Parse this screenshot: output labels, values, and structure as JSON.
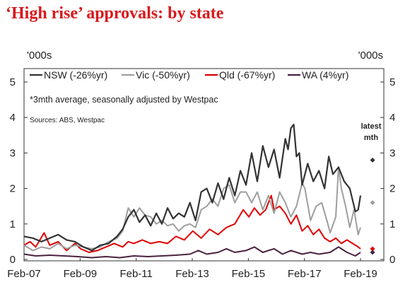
{
  "title": "‘High rise’ approvals: by state",
  "chart_data": {
    "type": "line",
    "unit_left": "'000s",
    "unit_right": "'000s",
    "ylim": [
      0,
      5
    ],
    "yticks": [
      0,
      1,
      2,
      3,
      4,
      5
    ],
    "xlim": [
      2007.083,
      2019.083
    ],
    "xticks": [
      {
        "label": "Feb-07",
        "value": 2007.083
      },
      {
        "label": "Feb-09",
        "value": 2009.083
      },
      {
        "label": "Feb-11",
        "value": 2011.083
      },
      {
        "label": "Feb-13",
        "value": 2013.083
      },
      {
        "label": "Feb-15",
        "value": 2015.083
      },
      {
        "label": "Feb-17",
        "value": 2017.083
      },
      {
        "label": "Feb-19",
        "value": 2019.083
      }
    ],
    "note": "*3mth average, seasonally adjusted by Westpac",
    "source": "Sources: ABS, Westpac",
    "latest_label_line1": "latest",
    "latest_label_line2": "mth",
    "legend_position": "top-left",
    "series": [
      {
        "name": "NSW (-26%yr)",
        "color": "#333333",
        "width": 2.2,
        "latest": 2.8,
        "points": [
          [
            2007.083,
            0.65
          ],
          [
            2007.4,
            0.6
          ],
          [
            2007.7,
            0.5
          ],
          [
            2008.0,
            0.6
          ],
          [
            2008.3,
            0.7
          ],
          [
            2008.6,
            0.55
          ],
          [
            2008.9,
            0.5
          ],
          [
            2009.2,
            0.35
          ],
          [
            2009.5,
            0.25
          ],
          [
            2009.8,
            0.4
          ],
          [
            2010.1,
            0.45
          ],
          [
            2010.4,
            0.65
          ],
          [
            2010.6,
            0.85
          ],
          [
            2010.8,
            1.2
          ],
          [
            2011.0,
            1.4
          ],
          [
            2011.2,
            1.05
          ],
          [
            2011.4,
            1.25
          ],
          [
            2011.6,
            0.95
          ],
          [
            2011.8,
            1.3
          ],
          [
            2012.0,
            1.0
          ],
          [
            2012.2,
            1.45
          ],
          [
            2012.4,
            1.15
          ],
          [
            2012.6,
            1.3
          ],
          [
            2012.8,
            1.2
          ],
          [
            2013.0,
            1.6
          ],
          [
            2013.2,
            1.1
          ],
          [
            2013.4,
            1.9
          ],
          [
            2013.6,
            2.0
          ],
          [
            2013.8,
            1.6
          ],
          [
            2014.0,
            2.15
          ],
          [
            2014.2,
            1.7
          ],
          [
            2014.4,
            2.3
          ],
          [
            2014.6,
            1.8
          ],
          [
            2014.8,
            2.5
          ],
          [
            2015.0,
            2.1
          ],
          [
            2015.2,
            3.0
          ],
          [
            2015.4,
            2.2
          ],
          [
            2015.6,
            3.2
          ],
          [
            2015.8,
            2.6
          ],
          [
            2016.0,
            3.1
          ],
          [
            2016.2,
            2.3
          ],
          [
            2016.4,
            3.4
          ],
          [
            2016.5,
            3.1
          ],
          [
            2016.6,
            3.7
          ],
          [
            2016.7,
            3.8
          ],
          [
            2016.8,
            2.9
          ],
          [
            2016.9,
            3.0
          ],
          [
            2017.0,
            2.1
          ],
          [
            2017.2,
            2.7
          ],
          [
            2017.4,
            2.2
          ],
          [
            2017.6,
            2.5
          ],
          [
            2017.8,
            2.0
          ],
          [
            2017.95,
            2.9
          ],
          [
            2018.1,
            2.4
          ],
          [
            2018.3,
            2.6
          ],
          [
            2018.5,
            2.2
          ],
          [
            2018.7,
            2.0
          ],
          [
            2018.9,
            1.35
          ],
          [
            2019.0,
            1.4
          ],
          [
            2019.083,
            1.8
          ]
        ]
      },
      {
        "name": "Vic (-50%yr)",
        "color": "#9e9e9e",
        "width": 2.0,
        "latest": 1.6,
        "points": [
          [
            2007.083,
            0.4
          ],
          [
            2007.4,
            0.25
          ],
          [
            2007.7,
            0.35
          ],
          [
            2008.0,
            0.3
          ],
          [
            2008.3,
            0.45
          ],
          [
            2008.6,
            0.3
          ],
          [
            2008.9,
            0.4
          ],
          [
            2009.2,
            0.35
          ],
          [
            2009.5,
            0.3
          ],
          [
            2009.8,
            0.35
          ],
          [
            2010.1,
            0.5
          ],
          [
            2010.4,
            0.6
          ],
          [
            2010.6,
            0.8
          ],
          [
            2010.8,
            1.45
          ],
          [
            2011.0,
            1.2
          ],
          [
            2011.2,
            1.45
          ],
          [
            2011.4,
            1.25
          ],
          [
            2011.6,
            1.2
          ],
          [
            2011.8,
            1.0
          ],
          [
            2012.0,
            1.1
          ],
          [
            2012.2,
            0.95
          ],
          [
            2012.4,
            1.0
          ],
          [
            2012.6,
            0.8
          ],
          [
            2012.8,
            0.95
          ],
          [
            2013.0,
            1.0
          ],
          [
            2013.2,
            0.9
          ],
          [
            2013.4,
            1.4
          ],
          [
            2013.6,
            1.5
          ],
          [
            2013.8,
            1.7
          ],
          [
            2014.0,
            1.5
          ],
          [
            2014.2,
            2.0
          ],
          [
            2014.4,
            2.1
          ],
          [
            2014.6,
            1.6
          ],
          [
            2014.8,
            1.9
          ],
          [
            2015.0,
            1.9
          ],
          [
            2015.2,
            1.6
          ],
          [
            2015.4,
            1.9
          ],
          [
            2015.6,
            1.4
          ],
          [
            2015.8,
            1.8
          ],
          [
            2016.0,
            1.3
          ],
          [
            2016.2,
            1.9
          ],
          [
            2016.4,
            1.6
          ],
          [
            2016.6,
            1.2
          ],
          [
            2016.8,
            1.5
          ],
          [
            2017.0,
            2.15
          ],
          [
            2017.1,
            2.0
          ],
          [
            2017.3,
            1.1
          ],
          [
            2017.5,
            1.5
          ],
          [
            2017.7,
            1.6
          ],
          [
            2017.9,
            1.05
          ],
          [
            2018.0,
            0.75
          ],
          [
            2018.2,
            1.2
          ],
          [
            2018.3,
            2.6
          ],
          [
            2018.4,
            2.0
          ],
          [
            2018.55,
            1.5
          ],
          [
            2018.7,
            0.9
          ],
          [
            2018.85,
            1.4
          ],
          [
            2019.0,
            0.7
          ],
          [
            2019.083,
            0.9
          ]
        ]
      },
      {
        "name": "Qld (-67%yr)",
        "color": "#e00000",
        "width": 2.0,
        "latest": 0.3,
        "points": [
          [
            2007.083,
            0.4
          ],
          [
            2007.3,
            0.5
          ],
          [
            2007.5,
            0.35
          ],
          [
            2007.8,
            0.75
          ],
          [
            2008.0,
            0.4
          ],
          [
            2008.3,
            0.5
          ],
          [
            2008.6,
            0.25
          ],
          [
            2008.9,
            0.45
          ],
          [
            2009.1,
            0.3
          ],
          [
            2009.4,
            0.2
          ],
          [
            2009.7,
            0.25
          ],
          [
            2010.0,
            0.35
          ],
          [
            2010.3,
            0.45
          ],
          [
            2010.6,
            0.35
          ],
          [
            2010.8,
            0.5
          ],
          [
            2011.0,
            0.45
          ],
          [
            2011.3,
            0.55
          ],
          [
            2011.6,
            0.45
          ],
          [
            2011.9,
            0.5
          ],
          [
            2012.2,
            0.45
          ],
          [
            2012.5,
            0.65
          ],
          [
            2012.8,
            0.55
          ],
          [
            2013.1,
            0.8
          ],
          [
            2013.4,
            0.6
          ],
          [
            2013.7,
            0.85
          ],
          [
            2014.0,
            0.7
          ],
          [
            2014.3,
            0.9
          ],
          [
            2014.6,
            1.0
          ],
          [
            2014.9,
            1.4
          ],
          [
            2015.1,
            1.2
          ],
          [
            2015.3,
            1.45
          ],
          [
            2015.5,
            1.25
          ],
          [
            2015.7,
            1.4
          ],
          [
            2015.9,
            1.8
          ],
          [
            2016.0,
            1.4
          ],
          [
            2016.2,
            1.5
          ],
          [
            2016.4,
            1.3
          ],
          [
            2016.6,
            1.0
          ],
          [
            2016.8,
            1.25
          ],
          [
            2017.0,
            0.8
          ],
          [
            2017.2,
            0.95
          ],
          [
            2017.4,
            0.7
          ],
          [
            2017.6,
            0.85
          ],
          [
            2017.8,
            0.6
          ],
          [
            2018.0,
            0.5
          ],
          [
            2018.2,
            0.6
          ],
          [
            2018.4,
            0.45
          ],
          [
            2018.6,
            0.55
          ],
          [
            2018.8,
            0.45
          ],
          [
            2019.0,
            0.35
          ],
          [
            2019.083,
            0.3
          ]
        ]
      },
      {
        "name": "WA (4%yr)",
        "color": "#4a2240",
        "width": 2.0,
        "latest": 0.2,
        "points": [
          [
            2007.083,
            0.15
          ],
          [
            2007.5,
            0.1
          ],
          [
            2008.0,
            0.12
          ],
          [
            2008.5,
            0.1
          ],
          [
            2009.0,
            0.08
          ],
          [
            2009.5,
            0.05
          ],
          [
            2010.0,
            0.08
          ],
          [
            2010.5,
            0.05
          ],
          [
            2011.0,
            0.1
          ],
          [
            2011.5,
            0.08
          ],
          [
            2012.0,
            0.1
          ],
          [
            2012.5,
            0.12
          ],
          [
            2013.0,
            0.15
          ],
          [
            2013.3,
            0.25
          ],
          [
            2013.6,
            0.15
          ],
          [
            2014.0,
            0.2
          ],
          [
            2014.3,
            0.3
          ],
          [
            2014.6,
            0.2
          ],
          [
            2015.0,
            0.25
          ],
          [
            2015.3,
            0.35
          ],
          [
            2015.6,
            0.2
          ],
          [
            2016.0,
            0.3
          ],
          [
            2016.3,
            0.15
          ],
          [
            2016.6,
            0.25
          ],
          [
            2017.0,
            0.15
          ],
          [
            2017.3,
            0.2
          ],
          [
            2017.6,
            0.15
          ],
          [
            2018.0,
            0.2
          ],
          [
            2018.3,
            0.35
          ],
          [
            2018.6,
            0.2
          ],
          [
            2018.9,
            0.1
          ],
          [
            2019.083,
            0.2
          ]
        ]
      }
    ]
  }
}
